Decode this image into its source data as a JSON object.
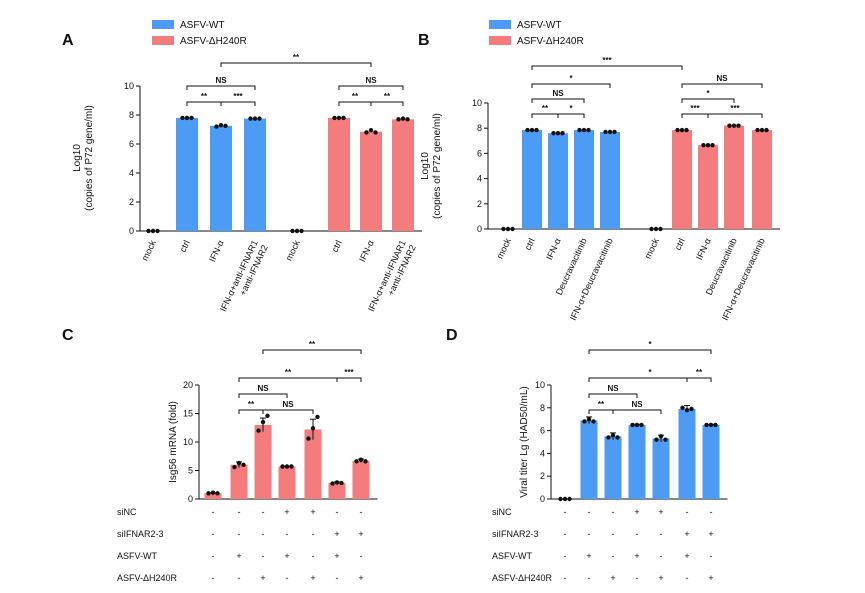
{
  "colors": {
    "wt": "#4c9bf5",
    "mut": "#f47c7c",
    "axis": "#111111",
    "point": "#111111"
  },
  "chart_data": [
    {
      "panel": "A",
      "type": "bar",
      "legend": [
        "ASFV-WT",
        "ASFV-ΔH240R"
      ],
      "ylabel_line1": "Log10",
      "ylabel_line2": "(copies of P72 gene/ml)",
      "ylim": [
        0,
        10
      ],
      "yticks": [
        "0",
        "2",
        "4",
        "6",
        "8",
        "10"
      ],
      "categories": [
        "mock",
        "ctrl",
        "IFN-α",
        "IFN-α+anti-IFNAR1\n+anti-IFNAR2",
        "mock",
        "ctrl",
        "IFN-α",
        "IFN-α+anti-IFNAR1\n+anti-IFNAR2"
      ],
      "series": [
        "mut",
        "wt",
        "wt",
        "wt",
        "mut",
        "mut",
        "mut",
        "mut"
      ],
      "values": [
        0,
        7.8,
        7.25,
        7.75,
        0,
        7.8,
        6.85,
        7.7
      ],
      "points": [
        [
          0,
          0,
          0
        ],
        [
          7.8,
          7.8,
          7.8
        ],
        [
          7.2,
          7.3,
          7.25
        ],
        [
          7.75,
          7.75,
          7.75
        ],
        [
          0,
          0,
          0
        ],
        [
          7.8,
          7.8,
          7.8
        ],
        [
          6.8,
          6.95,
          6.8
        ],
        [
          7.7,
          7.75,
          7.7
        ]
      ],
      "brackets": [
        {
          "a": 1,
          "b": 2,
          "label": "**",
          "level": 0
        },
        {
          "a": 2,
          "b": 3,
          "label": "***",
          "level": 0
        },
        {
          "a": 1,
          "b": 3,
          "label": "NS",
          "level": 1
        },
        {
          "a": 5,
          "b": 6,
          "label": "**",
          "level": 0
        },
        {
          "a": 6,
          "b": 7,
          "label": "**",
          "level": 0
        },
        {
          "a": 5,
          "b": 7,
          "label": "NS",
          "level": 1
        },
        {
          "a": 2,
          "b": 6,
          "label": "**",
          "level": 2
        }
      ]
    },
    {
      "panel": "B",
      "type": "bar",
      "legend": [
        "ASFV-WT",
        "ASFV-ΔH240R"
      ],
      "ylabel_line1": "Log10",
      "ylabel_line2": "(copies of P72 gene/ml)",
      "ylim": [
        0,
        10
      ],
      "yticks": [
        "0",
        "2",
        "4",
        "6",
        "8",
        "10"
      ],
      "categories": [
        "mock",
        "ctrl",
        "IFN-α",
        "Deucravacitinib",
        "IFN-α+Deucravacitinib",
        "mock",
        "ctrl",
        "IFN-α",
        "Deucravacitinib",
        "IFN-α+Deucravacitinib"
      ],
      "series": [
        "wt",
        "wt",
        "wt",
        "wt",
        "wt",
        "mut",
        "mut",
        "mut",
        "mut",
        "mut"
      ],
      "values": [
        0,
        7.85,
        7.6,
        7.85,
        7.7,
        0,
        7.85,
        6.65,
        8.2,
        7.85
      ],
      "points": [
        [
          0,
          0,
          0
        ],
        [
          7.85,
          7.85,
          7.85
        ],
        [
          7.6,
          7.6,
          7.6
        ],
        [
          7.85,
          7.85,
          7.85
        ],
        [
          7.7,
          7.7,
          7.7
        ],
        [
          0,
          0,
          0
        ],
        [
          7.85,
          7.85,
          7.85
        ],
        [
          6.65,
          6.65,
          6.65
        ],
        [
          8.2,
          8.2,
          8.2
        ],
        [
          7.85,
          7.85,
          7.85
        ]
      ],
      "brackets": [
        {
          "a": 1,
          "b": 2,
          "label": "**",
          "level": 0
        },
        {
          "a": 2,
          "b": 3,
          "label": "*",
          "level": 0
        },
        {
          "a": 1,
          "b": 3,
          "label": "NS",
          "level": 1
        },
        {
          "a": 1,
          "b": 4,
          "label": "*",
          "level": 2
        },
        {
          "a": 6,
          "b": 7,
          "label": "***",
          "level": 0
        },
        {
          "a": 7,
          "b": 9,
          "label": "***",
          "level": 0
        },
        {
          "a": 6,
          "b": 8,
          "label": "*",
          "level": 1
        },
        {
          "a": 6,
          "b": 9,
          "label": "NS",
          "level": 2
        },
        {
          "a": 1,
          "b": 6,
          "label": "***",
          "level": 3
        }
      ]
    },
    {
      "panel": "C",
      "type": "bar",
      "ylabel": "Isg56 mRNA (fold)",
      "ylim": [
        0,
        20
      ],
      "yticks": [
        "0",
        "5",
        "10",
        "15",
        "20"
      ],
      "values": [
        1,
        6,
        13,
        5.7,
        12.2,
        2.8,
        6.7
      ],
      "points": [
        [
          1.0,
          1.1,
          1.0
        ],
        [
          5.6,
          6.3,
          6.0
        ],
        [
          12.0,
          13.5,
          14.6
        ],
        [
          5.7,
          5.7,
          5.7
        ],
        [
          10.6,
          12.4,
          14.4
        ],
        [
          2.7,
          2.9,
          2.8
        ],
        [
          6.6,
          6.9,
          6.6
        ]
      ],
      "errors": [
        0.1,
        0.5,
        1.2,
        0.1,
        1.8,
        0.2,
        0.3
      ],
      "conditions": [
        {
          "label": "siNC",
          "signs": [
            "-",
            "-",
            "-",
            "+",
            "+",
            "-",
            "-"
          ]
        },
        {
          "label": "siIFNAR2-3",
          "signs": [
            "-",
            "-",
            "-",
            "-",
            "-",
            "+",
            "+"
          ]
        },
        {
          "label": "ASFV-WT",
          "signs": [
            "-",
            "+",
            "-",
            "+",
            "-",
            "+",
            "-"
          ]
        },
        {
          "label": "ASFV-ΔH240R",
          "signs": [
            "-",
            "-",
            "+",
            "-",
            "+",
            "-",
            "+"
          ]
        }
      ],
      "brackets": [
        {
          "a": 1,
          "b": 2,
          "label": "**",
          "level": 0
        },
        {
          "a": 2,
          "b": 4,
          "label": "NS",
          "level": 0
        },
        {
          "a": 1,
          "b": 3,
          "label": "NS",
          "level": 1
        },
        {
          "a": 1,
          "b": 5,
          "label": "**",
          "level": 2
        },
        {
          "a": 5,
          "b": 6,
          "label": "***",
          "level": 2
        },
        {
          "a": 2,
          "b": 6,
          "label": "**",
          "level": 3
        }
      ]
    },
    {
      "panel": "D",
      "type": "bar",
      "ylabel": "Viral titer Lg (HAD50/mL)",
      "ylim": [
        0,
        10
      ],
      "yticks": [
        "0",
        "2",
        "4",
        "6",
        "8",
        "10"
      ],
      "values": [
        0,
        6.9,
        5.5,
        6.5,
        5.3,
        7.9,
        6.5
      ],
      "points": [
        [
          0,
          0,
          0
        ],
        [
          6.8,
          7.0,
          6.8
        ],
        [
          5.4,
          5.6,
          5.4
        ],
        [
          6.5,
          6.5,
          6.5
        ],
        [
          5.2,
          5.5,
          5.2
        ],
        [
          8.0,
          7.8,
          7.9
        ],
        [
          6.5,
          6.5,
          6.5
        ]
      ],
      "errors": [
        0,
        0.3,
        0.3,
        0.05,
        0.3,
        0.3,
        0.05
      ],
      "conditions": [
        {
          "label": "siNC",
          "signs": [
            "-",
            "-",
            "-",
            "+",
            "+",
            "-",
            "-"
          ]
        },
        {
          "label": "siIFNAR2-3",
          "signs": [
            "-",
            "-",
            "-",
            "-",
            "-",
            "+",
            "+"
          ]
        },
        {
          "label": "ASFV-WT",
          "signs": [
            "-",
            "+",
            "-",
            "+",
            "-",
            "+",
            "-"
          ]
        },
        {
          "label": "ASFV-ΔH240R",
          "signs": [
            "-",
            "-",
            "+",
            "-",
            "+",
            "-",
            "+"
          ]
        }
      ],
      "brackets": [
        {
          "a": 1,
          "b": 2,
          "label": "**",
          "level": 0
        },
        {
          "a": 2,
          "b": 4,
          "label": "NS",
          "level": 0
        },
        {
          "a": 1,
          "b": 3,
          "label": "NS",
          "level": 1
        },
        {
          "a": 1,
          "b": 6,
          "label": "*",
          "level": 2
        },
        {
          "a": 5,
          "b": 6,
          "label": "**",
          "level": 2
        },
        {
          "a": 1,
          "b": 6,
          "label": "*",
          "level": 3
        }
      ]
    }
  ]
}
